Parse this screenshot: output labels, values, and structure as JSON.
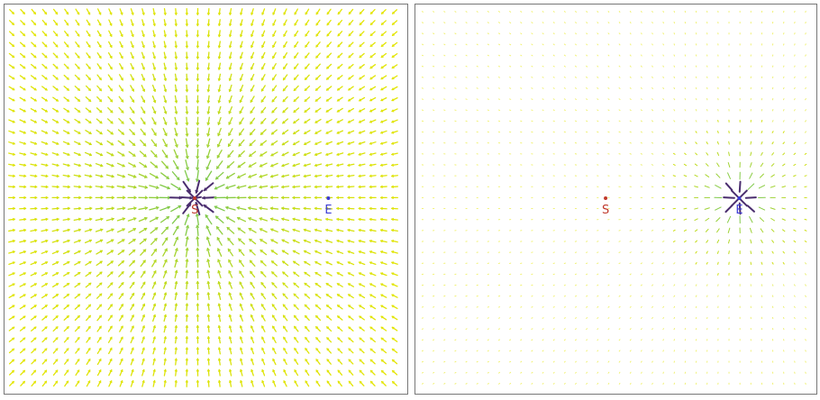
{
  "panels": [
    {
      "id": "left",
      "field_source": "S",
      "markers": [
        {
          "label": "S",
          "color": "#c0392b"
        },
        {
          "label": "E",
          "color": "#3b3bd6"
        }
      ]
    },
    {
      "id": "right",
      "field_source": "E",
      "markers": [
        {
          "label": "S",
          "color": "#c0392b"
        },
        {
          "label": "E",
          "color": "#3b3bd6"
        }
      ]
    }
  ],
  "colors": {
    "arrow_far": "#e6e600",
    "arrow_near": "#7fc94a",
    "arrow_core": "#4a2d6e",
    "border": "#777777"
  }
}
